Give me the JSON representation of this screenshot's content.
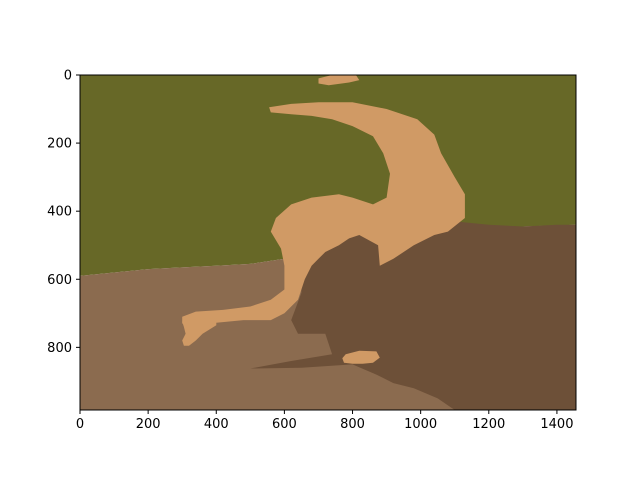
{
  "chart_data": {
    "type": "heatmap",
    "subtype": "image",
    "xlim": [
      0,
      1456
    ],
    "ylim": [
      984,
      0
    ],
    "x_ticks": [
      0,
      200,
      400,
      600,
      800,
      1000,
      1200,
      1400
    ],
    "y_ticks": [
      0,
      200,
      400,
      600,
      800
    ],
    "x_tick_labels": [
      "0",
      "200",
      "400",
      "600",
      "800",
      "1000",
      "1200",
      "1400"
    ],
    "y_tick_labels": [
      "0",
      "200",
      "400",
      "600",
      "800"
    ],
    "grid": false,
    "legend": "none",
    "palette": {
      "grass": "#676827",
      "ground": "#8b6b4f",
      "shadow": "#6d5038",
      "cat": "#d09a65"
    },
    "regions": [
      {
        "name": "grass",
        "color_key": "grass",
        "points": [
          [
            0,
            0
          ],
          [
            1456,
            0
          ],
          [
            1456,
            440
          ],
          [
            1300,
            445
          ],
          [
            1150,
            450
          ],
          [
            1000,
            470
          ],
          [
            900,
            480
          ],
          [
            800,
            490
          ],
          [
            700,
            500
          ],
          [
            600,
            540
          ],
          [
            500,
            555
          ],
          [
            400,
            560
          ],
          [
            300,
            565
          ],
          [
            200,
            570
          ],
          [
            100,
            580
          ],
          [
            0,
            590
          ]
        ]
      },
      {
        "name": "ground",
        "color_key": "ground",
        "points": [
          [
            0,
            590
          ],
          [
            100,
            580
          ],
          [
            200,
            570
          ],
          [
            300,
            565
          ],
          [
            400,
            560
          ],
          [
            500,
            555
          ],
          [
            600,
            540
          ],
          [
            700,
            500
          ],
          [
            800,
            490
          ],
          [
            900,
            480
          ],
          [
            1000,
            470
          ],
          [
            1150,
            450
          ],
          [
            1300,
            445
          ],
          [
            1456,
            440
          ],
          [
            1456,
            984
          ],
          [
            0,
            984
          ]
        ]
      },
      {
        "name": "shadow",
        "color_key": "shadow",
        "points": [
          [
            650,
            450
          ],
          [
            780,
            460
          ],
          [
            880,
            470
          ],
          [
            1000,
            460
          ],
          [
            1100,
            430
          ],
          [
            1200,
            440
          ],
          [
            1300,
            445
          ],
          [
            1400,
            440
          ],
          [
            1456,
            440
          ],
          [
            1456,
            984
          ],
          [
            1100,
            984
          ],
          [
            1050,
            950
          ],
          [
            980,
            920
          ],
          [
            920,
            905
          ],
          [
            870,
            880
          ],
          [
            800,
            850
          ],
          [
            650,
            860
          ],
          [
            500,
            862
          ],
          [
            620,
            840
          ],
          [
            740,
            820
          ],
          [
            720,
            760
          ],
          [
            640,
            760
          ],
          [
            620,
            720
          ],
          [
            650,
            640
          ]
        ]
      },
      {
        "name": "cat-body",
        "color_key": "cat",
        "points": [
          [
            555,
            95
          ],
          [
            620,
            85
          ],
          [
            700,
            80
          ],
          [
            800,
            80
          ],
          [
            900,
            100
          ],
          [
            990,
            130
          ],
          [
            1040,
            175
          ],
          [
            1060,
            230
          ],
          [
            1100,
            300
          ],
          [
            1130,
            350
          ],
          [
            1130,
            420
          ],
          [
            1080,
            460
          ],
          [
            1040,
            470
          ],
          [
            980,
            500
          ],
          [
            920,
            540
          ],
          [
            880,
            560
          ],
          [
            875,
            500
          ],
          [
            820,
            470
          ],
          [
            790,
            480
          ],
          [
            760,
            500
          ],
          [
            720,
            520
          ],
          [
            700,
            540
          ],
          [
            680,
            560
          ],
          [
            660,
            600
          ],
          [
            640,
            660
          ],
          [
            600,
            700
          ],
          [
            560,
            720
          ],
          [
            480,
            720
          ],
          [
            400,
            728
          ],
          [
            320,
            735
          ],
          [
            300,
            730
          ],
          [
            300,
            710
          ],
          [
            340,
            695
          ],
          [
            420,
            690
          ],
          [
            500,
            680
          ],
          [
            560,
            660
          ],
          [
            600,
            630
          ],
          [
            600,
            560
          ],
          [
            590,
            510
          ],
          [
            560,
            460
          ],
          [
            575,
            420
          ],
          [
            620,
            380
          ],
          [
            680,
            360
          ],
          [
            760,
            350
          ],
          [
            800,
            360
          ],
          [
            860,
            380
          ],
          [
            900,
            360
          ],
          [
            910,
            290
          ],
          [
            890,
            230
          ],
          [
            860,
            180
          ],
          [
            800,
            150
          ],
          [
            740,
            130
          ],
          [
            680,
            120
          ],
          [
            620,
            115
          ],
          [
            560,
            110
          ]
        ]
      },
      {
        "name": "cat-front-paw",
        "color_key": "cat",
        "points": [
          [
            300,
            725
          ],
          [
            340,
            718
          ],
          [
            400,
            715
          ],
          [
            400,
            735
          ],
          [
            360,
            760
          ],
          [
            340,
            780
          ],
          [
            320,
            795
          ],
          [
            305,
            795
          ],
          [
            300,
            780
          ],
          [
            310,
            760
          ],
          [
            305,
            740
          ]
        ]
      },
      {
        "name": "cat-back-paw",
        "color_key": "cat",
        "points": [
          [
            780,
            820
          ],
          [
            820,
            810
          ],
          [
            870,
            812
          ],
          [
            880,
            830
          ],
          [
            860,
            845
          ],
          [
            830,
            848
          ],
          [
            800,
            848
          ],
          [
            775,
            845
          ],
          [
            770,
            832
          ]
        ]
      },
      {
        "name": "cat-top-patch",
        "color_key": "cat",
        "points": [
          [
            700,
            10
          ],
          [
            740,
            0
          ],
          [
            810,
            0
          ],
          [
            820,
            15
          ],
          [
            790,
            22
          ],
          [
            730,
            30
          ],
          [
            700,
            25
          ]
        ]
      }
    ]
  }
}
